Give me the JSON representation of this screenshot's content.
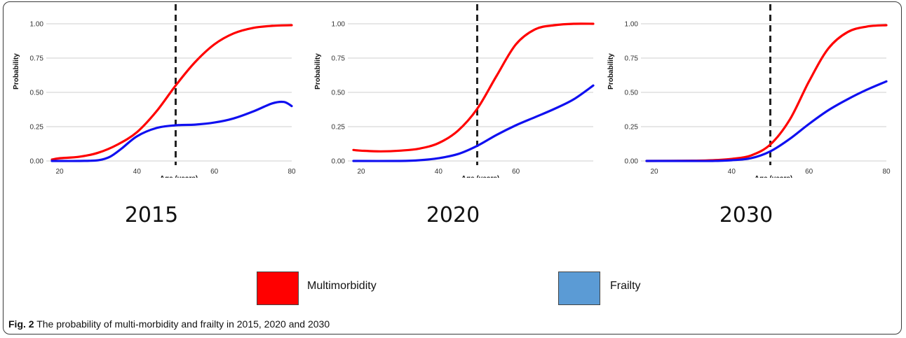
{
  "colors": {
    "multimorbidity": "#ff0000",
    "frailty": "#1010f0",
    "marker": "#222222",
    "grid": "#cfcfcf"
  },
  "legend": [
    {
      "label": "Multimorbidity",
      "swatch": "#ff0000"
    },
    {
      "label": "Frailty",
      "swatch": "#5b9bd5"
    }
  ],
  "caption": {
    "prefix": "Fig. 2",
    "text": "The probability of multi-morbidity and frailty in 2015, 2020 and 2030"
  },
  "chart_data": [
    {
      "type": "line",
      "year_label": "2015",
      "xlabel": "Age (years)",
      "ylabel": "Probability",
      "xlim": [
        18,
        80
      ],
      "ylim": [
        0,
        1
      ],
      "xticks": [
        "20",
        "40",
        "60",
        "80"
      ],
      "yticks": [
        "0.00",
        "0.25",
        "0.50",
        "0.75",
        "1.00"
      ],
      "grid": true,
      "marker_x": 50,
      "series": [
        {
          "key": "multimorbidity",
          "x": [
            18,
            20,
            25,
            30,
            35,
            40,
            45,
            50,
            55,
            60,
            65,
            70,
            75,
            80
          ],
          "y": [
            0.01,
            0.02,
            0.03,
            0.06,
            0.12,
            0.21,
            0.36,
            0.55,
            0.72,
            0.85,
            0.93,
            0.97,
            0.985,
            0.99
          ]
        },
        {
          "key": "frailty",
          "x": [
            18,
            25,
            30,
            33,
            36,
            40,
            45,
            50,
            55,
            60,
            65,
            70,
            75,
            78,
            80
          ],
          "y": [
            0.0,
            0.0,
            0.005,
            0.03,
            0.09,
            0.18,
            0.24,
            0.26,
            0.265,
            0.28,
            0.31,
            0.36,
            0.42,
            0.43,
            0.4
          ]
        }
      ]
    },
    {
      "type": "line",
      "year_label": "2020",
      "xlabel": "Age (years)",
      "ylabel": "Probability",
      "xlim": [
        18,
        80
      ],
      "ylim": [
        0,
        1
      ],
      "xticks": [
        "20",
        "40",
        "60"
      ],
      "yticks": [
        "0.00",
        "0.25",
        "0.50",
        "0.75",
        "1.00"
      ],
      "grid": true,
      "marker_x": 50,
      "series": [
        {
          "key": "multimorbidity",
          "x": [
            18,
            20,
            25,
            30,
            35,
            40,
            45,
            50,
            55,
            60,
            65,
            70,
            75,
            80
          ],
          "y": [
            0.08,
            0.075,
            0.07,
            0.075,
            0.09,
            0.13,
            0.22,
            0.38,
            0.62,
            0.85,
            0.96,
            0.99,
            1.0,
            1.0
          ]
        },
        {
          "key": "frailty",
          "x": [
            18,
            30,
            35,
            40,
            45,
            50,
            55,
            60,
            65,
            70,
            75,
            80
          ],
          "y": [
            0.0,
            0.0,
            0.005,
            0.02,
            0.05,
            0.11,
            0.19,
            0.26,
            0.32,
            0.38,
            0.45,
            0.55
          ]
        }
      ]
    },
    {
      "type": "line",
      "year_label": "2030",
      "xlabel": "Age (years)",
      "ylabel": "Probability",
      "xlim": [
        18,
        80
      ],
      "ylim": [
        0,
        1
      ],
      "xticks": [
        "20",
        "40",
        "60",
        "80"
      ],
      "yticks": [
        "0.00",
        "0.25",
        "0.50",
        "0.75",
        "1.00"
      ],
      "grid": true,
      "marker_x": 50,
      "series": [
        {
          "key": "multimorbidity",
          "x": [
            18,
            30,
            35,
            40,
            45,
            50,
            55,
            60,
            65,
            70,
            75,
            80
          ],
          "y": [
            0.0,
            0.002,
            0.005,
            0.015,
            0.04,
            0.12,
            0.3,
            0.58,
            0.82,
            0.94,
            0.98,
            0.99
          ]
        },
        {
          "key": "frailty",
          "x": [
            18,
            30,
            35,
            40,
            45,
            50,
            55,
            60,
            65,
            70,
            75,
            80
          ],
          "y": [
            0.0,
            0.0,
            0.0,
            0.005,
            0.02,
            0.07,
            0.16,
            0.27,
            0.37,
            0.45,
            0.52,
            0.58
          ]
        }
      ]
    }
  ]
}
